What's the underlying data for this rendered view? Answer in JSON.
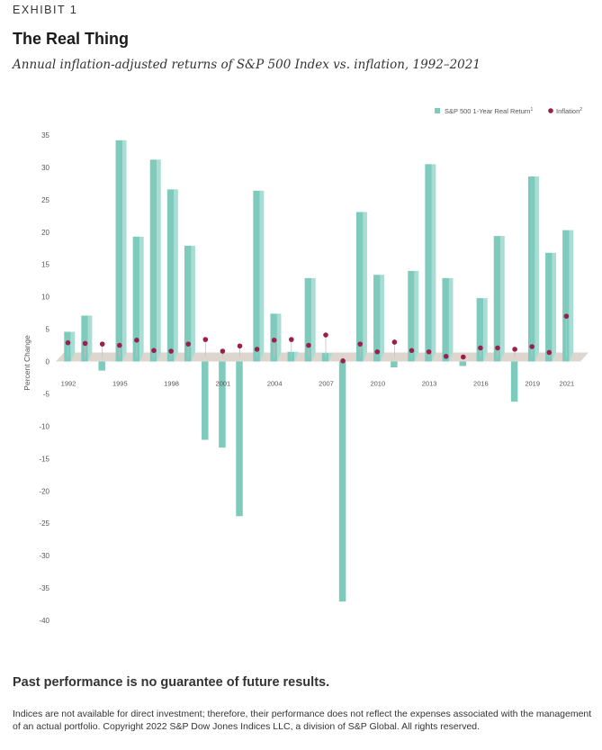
{
  "header": {
    "exhibit": "EXHIBIT 1",
    "title": "The Real Thing",
    "subtitle": "Annual inflation-adjusted returns of S&P 500 Index vs. inflation, 1992–2021"
  },
  "chart_data": {
    "type": "bar",
    "ylabel": "Percent Change",
    "ylim": [
      -40,
      35
    ],
    "yticks": [
      35,
      30,
      25,
      20,
      15,
      10,
      5,
      0,
      -5,
      -10,
      -15,
      -20,
      -25,
      -30,
      -35,
      -40
    ],
    "grid": false,
    "legend_position": "top-right",
    "categories": [
      1992,
      1993,
      1994,
      1995,
      1996,
      1997,
      1998,
      1999,
      2000,
      2001,
      2002,
      2003,
      2004,
      2005,
      2006,
      2007,
      2008,
      2009,
      2010,
      2011,
      2012,
      2013,
      2014,
      2015,
      2016,
      2017,
      2018,
      2019,
      2020,
      2021
    ],
    "xtick_labels": [
      "1992",
      "1995",
      "1998",
      "2001",
      "2004",
      "2007",
      "2010",
      "2013",
      "2016",
      "2019",
      "2021"
    ],
    "series": [
      {
        "name": "S&P 500 1-Year Real Return",
        "superscript": "1",
        "kind": "bar",
        "color": "#7ecbbd",
        "values": [
          4.6,
          7.1,
          -1.4,
          34.2,
          19.3,
          31.2,
          26.6,
          17.9,
          -12.1,
          -13.3,
          -23.9,
          26.4,
          7.4,
          1.5,
          12.9,
          1.3,
          -37.1,
          23.1,
          13.4,
          -0.9,
          14.0,
          30.5,
          12.9,
          -0.7,
          9.8,
          19.4,
          -6.2,
          28.6,
          16.8,
          20.3
        ]
      },
      {
        "name": "Inflation",
        "superscript": "2",
        "kind": "point",
        "color": "#9b1f4b",
        "values": [
          2.9,
          2.8,
          2.7,
          2.5,
          3.3,
          1.7,
          1.6,
          2.7,
          3.4,
          1.6,
          2.4,
          1.9,
          3.3,
          3.4,
          2.5,
          4.1,
          0.1,
          2.7,
          1.5,
          3.0,
          1.7,
          1.5,
          0.8,
          0.7,
          2.1,
          2.1,
          1.9,
          2.3,
          1.4,
          7.0
        ]
      }
    ]
  },
  "footer": {
    "disclaimer_title": "Past performance is no guarantee of future results.",
    "disclaimer_text": "Indices are not available for direct investment; therefore, their performance does not reflect the expenses associated with the management of an actual portfolio. Copyright 2022 S&P Dow Jones Indices LLC, a division of S&P Global. All rights reserved."
  }
}
